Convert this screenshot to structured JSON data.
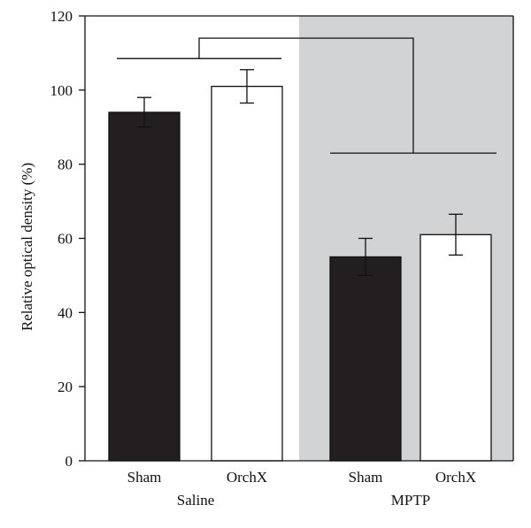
{
  "chart_data": {
    "type": "bar",
    "ylabel": "Relative optical density (%)",
    "ylim": [
      0,
      120
    ],
    "yticks": [
      0,
      20,
      40,
      60,
      80,
      100,
      120
    ],
    "grid": false,
    "groups": [
      {
        "label": "Saline",
        "shaded": false
      },
      {
        "label": "MPTP",
        "shaded": true
      }
    ],
    "bars": [
      {
        "category": "Sham",
        "group": "Saline",
        "value": 94,
        "error": 4,
        "fill": "#231f20"
      },
      {
        "category": "OrchX",
        "group": "Saline",
        "value": 101,
        "error": 4.5,
        "fill": "#ffffff"
      },
      {
        "category": "Sham",
        "group": "MPTP",
        "value": 55,
        "error": 5,
        "fill": "#231f20"
      },
      {
        "category": "OrchX",
        "group": "MPTP",
        "value": 61,
        "error": 5.5,
        "fill": "#ffffff"
      }
    ],
    "significance_brackets": [
      {
        "connects": [
          "Saline",
          "MPTP"
        ],
        "saline_level": 108.5,
        "mptp_level": 83,
        "top_level": 114
      }
    ],
    "colors": {
      "shaded_region": "#d2d3d5",
      "dark_bar": "#231f20",
      "axis": "#111111"
    }
  }
}
